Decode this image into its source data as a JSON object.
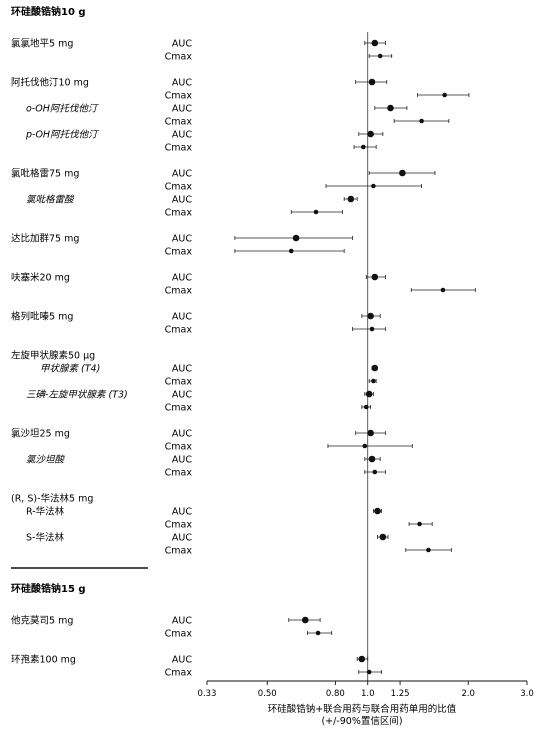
{
  "chart_data": {
    "type": "forest",
    "xlabel": "环硅酸锆钠+联合用药与联合用药单用的比值",
    "xlabel_sub": "(+/-90%置信区间)",
    "x_scale": "log",
    "xlim": [
      0.33,
      3.0
    ],
    "x_ticks": [
      "0.33",
      "0.50",
      "0.80",
      "1.0",
      "1.25",
      "2.0",
      "3.0"
    ],
    "reference_line": 1.0,
    "sections": [
      {
        "title": "环硅酸锆钠10 g",
        "groups": [
          {
            "label": "氯氯地平5 mg",
            "italic": false,
            "rows": [
              {
                "stat": "AUC",
                "est": 1.05,
                "lo": 0.98,
                "hi": 1.13
              },
              {
                "stat": "Cmax",
                "est": 1.09,
                "lo": 1.01,
                "hi": 1.18
              }
            ]
          },
          {
            "label": "阿托伐他汀10 mg",
            "italic": false,
            "rows": [
              {
                "stat": "AUC",
                "est": 1.03,
                "lo": 0.92,
                "hi": 1.14
              },
              {
                "stat": "Cmax",
                "est": 1.7,
                "lo": 1.41,
                "hi": 2.01
              }
            ]
          },
          {
            "label": "o-OH阿托伐他汀",
            "italic": true,
            "rows": [
              {
                "stat": "AUC",
                "est": 1.17,
                "lo": 1.05,
                "hi": 1.31
              },
              {
                "stat": "Cmax",
                "est": 1.45,
                "lo": 1.2,
                "hi": 1.75
              }
            ]
          },
          {
            "label": "p-OH阿托伐他汀",
            "italic": true,
            "rows": [
              {
                "stat": "AUC",
                "est": 1.02,
                "lo": 0.94,
                "hi": 1.11
              },
              {
                "stat": "Cmax",
                "est": 0.97,
                "lo": 0.91,
                "hi": 1.06
              }
            ]
          },
          {
            "label": "氯吡格雷75 mg",
            "italic": false,
            "rows": [
              {
                "stat": "AUC",
                "est": 1.27,
                "lo": 1.01,
                "hi": 1.59
              },
              {
                "stat": "Cmax",
                "est": 1.04,
                "lo": 0.75,
                "hi": 1.45
              }
            ]
          },
          {
            "label": "氯吡格雷酸",
            "italic": true,
            "rows": [
              {
                "stat": "AUC",
                "est": 0.89,
                "lo": 0.85,
                "hi": 0.93
              },
              {
                "stat": "Cmax",
                "est": 0.7,
                "lo": 0.59,
                "hi": 0.84
              }
            ]
          },
          {
            "label": "达比加群75 mg",
            "italic": false,
            "rows": [
              {
                "stat": "AUC",
                "est": 0.61,
                "lo": 0.4,
                "hi": 0.9
              },
              {
                "stat": "Cmax",
                "est": 0.59,
                "lo": 0.4,
                "hi": 0.85
              }
            ]
          },
          {
            "label": "呋塞米20 mg",
            "italic": false,
            "rows": [
              {
                "stat": "AUC",
                "est": 1.05,
                "lo": 0.99,
                "hi": 1.13
              },
              {
                "stat": "Cmax",
                "est": 1.68,
                "lo": 1.35,
                "hi": 2.1
              }
            ]
          },
          {
            "label": "格列吡嗪5 mg",
            "italic": false,
            "rows": [
              {
                "stat": "AUC",
                "est": 1.02,
                "lo": 0.96,
                "hi": 1.09
              },
              {
                "stat": "Cmax",
                "est": 1.03,
                "lo": 0.9,
                "hi": 1.13
              }
            ]
          },
          {
            "label": "左旋甲状腺素50 μg",
            "italic": false,
            "rows": []
          },
          {
            "label": "甲状腺素 (T4)",
            "italic": true,
            "rows": [
              {
                "stat": "AUC",
                "est": 1.05,
                "lo": 1.03,
                "hi": 1.06
              },
              {
                "stat": "Cmax",
                "est": 1.04,
                "lo": 1.01,
                "hi": 1.06
              }
            ]
          },
          {
            "label": "三碘-左旋甲状腺素 (T3)",
            "italic": true,
            "rows": [
              {
                "stat": "AUC",
                "est": 1.01,
                "lo": 0.98,
                "hi": 1.04
              },
              {
                "stat": "Cmax",
                "est": 0.99,
                "lo": 0.96,
                "hi": 1.02
              }
            ]
          },
          {
            "label": "氯沙坦25 mg",
            "italic": false,
            "rows": [
              {
                "stat": "AUC",
                "est": 1.02,
                "lo": 0.92,
                "hi": 1.13
              },
              {
                "stat": "Cmax",
                "est": 0.98,
                "lo": 0.76,
                "hi": 1.36
              }
            ]
          },
          {
            "label": "氯沙坦酸",
            "italic": true,
            "rows": [
              {
                "stat": "AUC",
                "est": 1.03,
                "lo": 0.98,
                "hi": 1.09
              },
              {
                "stat": "Cmax",
                "est": 1.05,
                "lo": 0.98,
                "hi": 1.13
              }
            ]
          },
          {
            "label": "(R, S)-华法林5 mg",
            "italic": false,
            "rows": []
          },
          {
            "label": "R-华法林",
            "italic": false,
            "rows": [
              {
                "stat": "AUC",
                "est": 1.07,
                "lo": 1.04,
                "hi": 1.1
              },
              {
                "stat": "Cmax",
                "est": 1.43,
                "lo": 1.33,
                "hi": 1.56
              }
            ]
          },
          {
            "label": "S-华法林",
            "italic": false,
            "rows": [
              {
                "stat": "AUC",
                "est": 1.11,
                "lo": 1.07,
                "hi": 1.15
              },
              {
                "stat": "Cmax",
                "est": 1.52,
                "lo": 1.3,
                "hi": 1.78
              }
            ]
          }
        ]
      },
      {
        "title": "环硅酸锆钠15 g",
        "groups": [
          {
            "label": "他克莫司5 mg",
            "italic": false,
            "rows": [
              {
                "stat": "AUC",
                "est": 0.65,
                "lo": 0.58,
                "hi": 0.72
              },
              {
                "stat": "Cmax",
                "est": 0.71,
                "lo": 0.66,
                "hi": 0.78
              }
            ]
          },
          {
            "label": "环孢素100 mg",
            "italic": false,
            "rows": [
              {
                "stat": "AUC",
                "est": 0.96,
                "lo": 0.93,
                "hi": 1.0
              },
              {
                "stat": "Cmax",
                "est": 1.01,
                "lo": 0.94,
                "hi": 1.1
              }
            ]
          }
        ]
      }
    ]
  }
}
